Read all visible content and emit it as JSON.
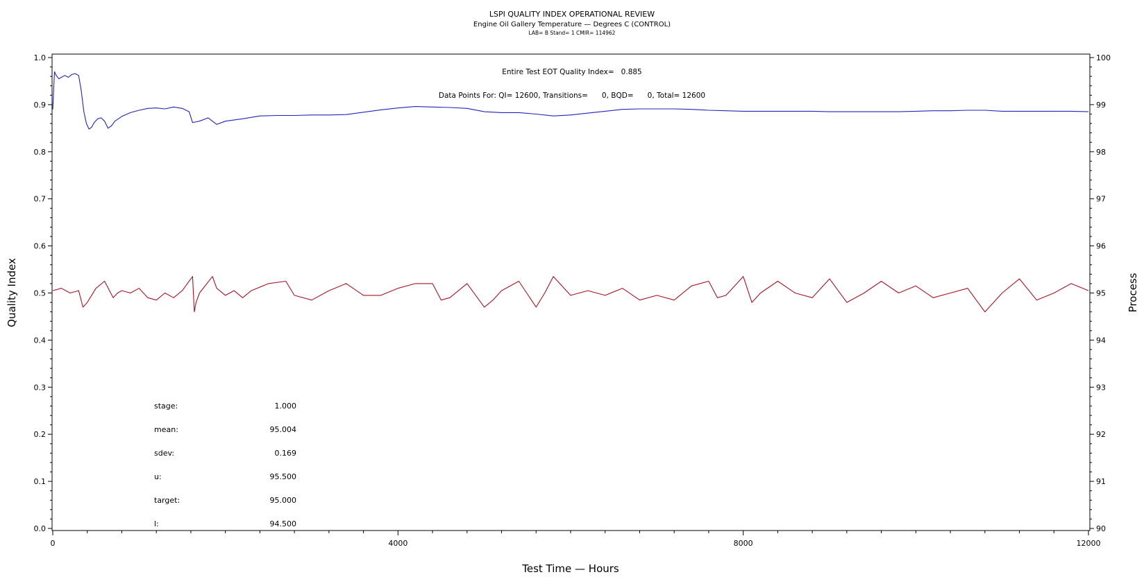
{
  "chart_data": {
    "type": "line",
    "title": "LSPI QUALITY INDEX OPERATIONAL REVIEW",
    "subtitle": "Engine Oil Gallery Temperature — Degrees C (CONTROL)",
    "subtitle2": "LAB= B Stand= 1 CMIR= 114962",
    "annotation_1": "Entire Test EOT Quality Index=   0.885",
    "annotation_2": "Data Points For: QI= 12600, Transitions=      0, BQD=      0, Total= 12600",
    "xlabel": "Test Time — Hours",
    "ylabel_left": "Quality Index",
    "ylabel_right": "Process",
    "xlim": [
      0,
      12000
    ],
    "ylim_left": [
      0.0,
      1.0
    ],
    "ylim_right": [
      90,
      100
    ],
    "x_ticks": [
      "0",
      "4000",
      "8000",
      "12000"
    ],
    "y_left_ticks": [
      "0.0",
      "0.1",
      "0.2",
      "0.3",
      "0.4",
      "0.5",
      "0.6",
      "0.7",
      "0.8",
      "0.9",
      "1.0"
    ],
    "y_right_ticks": [
      "90",
      "91",
      "92",
      "93",
      "94",
      "95",
      "96",
      "97",
      "98",
      "99",
      "100"
    ],
    "series": [
      {
        "color": "#2222bb",
        "axis": "left",
        "x": [
          0,
          20,
          40,
          70,
          100,
          140,
          180,
          220,
          260,
          300,
          330,
          360,
          390,
          420,
          450,
          480,
          520,
          560,
          600,
          640,
          680,
          720,
          800,
          900,
          1000,
          1100,
          1200,
          1300,
          1400,
          1500,
          1580,
          1620,
          1650,
          1700,
          1800,
          1900,
          2000,
          2200,
          2400,
          2600,
          2800,
          3000,
          3200,
          3400,
          3600,
          3800,
          4000,
          4200,
          4400,
          4600,
          4800,
          5000,
          5200,
          5400,
          5600,
          5800,
          6000,
          6200,
          6400,
          6600,
          6800,
          7000,
          7200,
          7400,
          7600,
          7800,
          8000,
          8200,
          8400,
          8600,
          8800,
          9000,
          9200,
          9400,
          9600,
          9800,
          10000,
          10200,
          10400,
          10600,
          10800,
          11000,
          11200,
          11400,
          11600,
          11800,
          12000
        ],
        "values": [
          0.89,
          0.97,
          0.962,
          0.955,
          0.958,
          0.962,
          0.958,
          0.964,
          0.966,
          0.962,
          0.93,
          0.885,
          0.86,
          0.848,
          0.852,
          0.862,
          0.87,
          0.872,
          0.865,
          0.85,
          0.855,
          0.865,
          0.875,
          0.883,
          0.888,
          0.892,
          0.893,
          0.891,
          0.895,
          0.892,
          0.885,
          0.862,
          0.863,
          0.865,
          0.872,
          0.858,
          0.865,
          0.87,
          0.876,
          0.877,
          0.877,
          0.878,
          0.878,
          0.879,
          0.884,
          0.889,
          0.893,
          0.896,
          0.895,
          0.894,
          0.892,
          0.885,
          0.883,
          0.883,
          0.88,
          0.876,
          0.878,
          0.882,
          0.886,
          0.89,
          0.891,
          0.891,
          0.891,
          0.89,
          0.888,
          0.887,
          0.886,
          0.886,
          0.886,
          0.886,
          0.886,
          0.885,
          0.885,
          0.885,
          0.885,
          0.885,
          0.886,
          0.887,
          0.887,
          0.888,
          0.888,
          0.886,
          0.886,
          0.886,
          0.886,
          0.886,
          0.885
        ]
      },
      {
        "color": "#aa1122",
        "axis": "right",
        "x": [
          0,
          100,
          200,
          300,
          350,
          400,
          500,
          600,
          700,
          750,
          800,
          900,
          1000,
          1100,
          1200,
          1300,
          1400,
          1500,
          1620,
          1640,
          1660,
          1700,
          1850,
          1900,
          2000,
          2100,
          2200,
          2300,
          2500,
          2700,
          2800,
          3000,
          3200,
          3400,
          3600,
          3800,
          4000,
          4200,
          4400,
          4500,
          4600,
          4800,
          5000,
          5100,
          5200,
          5400,
          5600,
          5700,
          5800,
          6000,
          6200,
          6400,
          6600,
          6800,
          7000,
          7200,
          7400,
          7600,
          7700,
          7800,
          8000,
          8100,
          8200,
          8400,
          8600,
          8800,
          9000,
          9200,
          9400,
          9600,
          9800,
          10000,
          10200,
          10400,
          10600,
          10800,
          11000,
          11200,
          11400,
          11600,
          11800,
          12000
        ],
        "values": [
          95.05,
          95.1,
          95.0,
          95.05,
          94.7,
          94.8,
          95.1,
          95.25,
          94.9,
          95.0,
          95.05,
          95.0,
          95.1,
          94.9,
          94.85,
          95.0,
          94.9,
          95.05,
          95.35,
          94.6,
          94.8,
          95.0,
          95.35,
          95.1,
          94.95,
          95.05,
          94.9,
          95.05,
          95.2,
          95.25,
          94.95,
          94.85,
          95.05,
          95.2,
          94.95,
          94.95,
          95.1,
          95.2,
          95.2,
          94.85,
          94.9,
          95.2,
          94.7,
          94.85,
          95.05,
          95.25,
          94.7,
          95.0,
          95.35,
          94.95,
          95.05,
          94.95,
          95.1,
          94.85,
          94.95,
          94.85,
          95.15,
          95.25,
          94.9,
          94.95,
          95.35,
          94.8,
          95.0,
          95.25,
          95.0,
          94.9,
          95.3,
          94.8,
          95.0,
          95.25,
          95.0,
          95.15,
          94.9,
          95.0,
          95.1,
          94.6,
          95.0,
          95.3,
          94.85,
          95.0,
          95.2,
          95.05
        ]
      }
    ],
    "stats": [
      {
        "label": "stage:",
        "value": "1.000"
      },
      {
        "label": "mean:",
        "value": "95.004"
      },
      {
        "label": "sdev:",
        "value": "0.169"
      },
      {
        "label": "u:",
        "value": "95.500"
      },
      {
        "label": "target:",
        "value": "95.000"
      },
      {
        "label": "l:",
        "value": "94.500"
      }
    ]
  }
}
